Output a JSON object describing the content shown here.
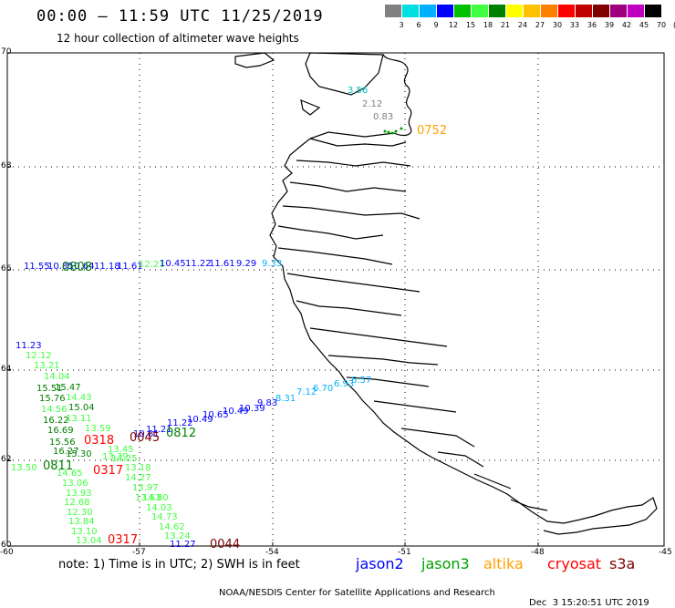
{
  "header": {
    "title": "00:00 — 11:59 UTC 11/25/2019",
    "subtitle": "12 hour collection of altimeter wave heights"
  },
  "colorbar": {
    "colors": [
      "#808080",
      "#00e0e0",
      "#00b0ff",
      "#0000ff",
      "#00c000",
      "#40ff40",
      "#008000",
      "#ffff00",
      "#ffc000",
      "#ff8000",
      "#ff0000",
      "#c00000",
      "#800000",
      "#a00080",
      "#c000c0",
      "#000000"
    ],
    "labels": [
      "3",
      "6",
      "9",
      "12",
      "15",
      "18",
      "21",
      "24",
      "27",
      "30",
      "33",
      "36",
      "39",
      "42",
      "45",
      "70",
      "(ft)"
    ]
  },
  "axes": {
    "lat_labels": [
      "70",
      "68",
      "66",
      "64",
      "62",
      "60"
    ],
    "lon_labels": [
      "-60",
      "-57",
      "-54",
      "-51",
      "-48",
      "-45"
    ]
  },
  "observations": [
    {
      "t": "3.56",
      "c": "#00c0c0"
    },
    {
      "t": "2.12",
      "c": "#808080"
    },
    {
      "t": "0.83",
      "c": "#808080"
    },
    {
      "t": "11.55",
      "c": "#0000ff"
    },
    {
      "t": "10.85",
      "c": "#0000ff"
    },
    {
      "t": "10.64",
      "c": "#0000ff"
    },
    {
      "t": "11.18",
      "c": "#0000ff"
    },
    {
      "t": "11.61",
      "c": "#0000ff"
    },
    {
      "t": "12.21",
      "c": "#40ff40"
    },
    {
      "t": "10.45",
      "c": "#0000ff"
    },
    {
      "t": "11.22",
      "c": "#0000ff"
    },
    {
      "t": "11.61",
      "c": "#0000ff"
    },
    {
      "t": "9.29",
      "c": "#0000ff"
    },
    {
      "t": "9.33",
      "c": "#00b0ff"
    },
    {
      "t": "11.23",
      "c": "#0000ff"
    },
    {
      "t": "12.12",
      "c": "#40ff40"
    },
    {
      "t": "13.21",
      "c": "#40ff40"
    },
    {
      "t": "14.04",
      "c": "#40ff40"
    },
    {
      "t": "15.51",
      "c": "#008000"
    },
    {
      "t": "15.47",
      "c": "#008000"
    },
    {
      "t": "15.76",
      "c": "#008000"
    },
    {
      "t": "14.43",
      "c": "#40ff40"
    },
    {
      "t": "15.04",
      "c": "#008000"
    },
    {
      "t": "14.56",
      "c": "#40ff40"
    },
    {
      "t": "16.22",
      "c": "#008000"
    },
    {
      "t": "13.11",
      "c": "#40ff40"
    },
    {
      "t": "16.69",
      "c": "#008000"
    },
    {
      "t": "13.59",
      "c": "#40ff40"
    },
    {
      "t": "15.56",
      "c": "#008000"
    },
    {
      "t": "16.27",
      "c": "#008000"
    },
    {
      "t": "13.45",
      "c": "#40ff40"
    },
    {
      "t": "15.30",
      "c": "#008000"
    },
    {
      "t": "13.39",
      "c": "#40ff40"
    },
    {
      "t": "13.50",
      "c": "#40ff40"
    },
    {
      "t": "14.65",
      "c": "#40ff40"
    },
    {
      "t": "14.25",
      "c": "#40ff40"
    },
    {
      "t": "13.18",
      "c": "#40ff40"
    },
    {
      "t": "14.27",
      "c": "#40ff40"
    },
    {
      "t": "13.06",
      "c": "#40ff40"
    },
    {
      "t": "13.97",
      "c": "#40ff40"
    },
    {
      "t": "13.93",
      "c": "#40ff40"
    },
    {
      "t": "13.53",
      "c": "#40ff40"
    },
    {
      "t": "12.68",
      "c": "#40ff40"
    },
    {
      "t": "14.80",
      "c": "#40ff40"
    },
    {
      "t": "12.30",
      "c": "#40ff40"
    },
    {
      "t": "14.03",
      "c": "#40ff40"
    },
    {
      "t": "13.84",
      "c": "#40ff40"
    },
    {
      "t": "14.73",
      "c": "#40ff40"
    },
    {
      "t": "13.10",
      "c": "#40ff40"
    },
    {
      "t": "14.62",
      "c": "#40ff40"
    },
    {
      "t": "13.04",
      "c": "#40ff40"
    },
    {
      "t": "13.24",
      "c": "#40ff40"
    },
    {
      "t": "11.27",
      "c": "#0000ff"
    },
    {
      "t": "11.21",
      "c": "#0000ff"
    },
    {
      "t": "10.81",
      "c": "#0000ff"
    },
    {
      "t": "11.22",
      "c": "#0000ff"
    },
    {
      "t": "10.49",
      "c": "#0000ff"
    },
    {
      "t": "10.65",
      "c": "#0000ff"
    },
    {
      "t": "10.49",
      "c": "#0000ff"
    },
    {
      "t": "10.39",
      "c": "#0000ff"
    },
    {
      "t": "9.83",
      "c": "#0000ff"
    },
    {
      "t": "8.31",
      "c": "#00b0ff"
    },
    {
      "t": "7.12",
      "c": "#00b0ff"
    },
    {
      "t": "6.70",
      "c": "#00b0ff"
    },
    {
      "t": "6.93",
      "c": "#00b0ff"
    },
    {
      "t": "6.57",
      "c": "#00b0ff"
    }
  ],
  "times": [
    {
      "t": "0752",
      "c": "#ffa000"
    },
    {
      "t": "0808",
      "c": "#008000"
    },
    {
      "t": "0318",
      "c": "#ff0000"
    },
    {
      "t": "0045",
      "c": "#800000"
    },
    {
      "t": "0812",
      "c": "#008000"
    },
    {
      "t": "0811",
      "c": "#008000"
    },
    {
      "t": "0317",
      "c": "#ff0000"
    },
    {
      "t": "0317",
      "c": "#ff0000"
    },
    {
      "t": "0044",
      "c": "#800000"
    }
  ],
  "footer": {
    "note": "note: 1) Time is in UTC; 2) SWH is in feet",
    "sats": [
      {
        "name": "jason2",
        "color": "#0000ff"
      },
      {
        "name": "jason3",
        "color": "#00a000"
      },
      {
        "name": "altika",
        "color": "#ffa000"
      },
      {
        "name": "cryosat",
        "color": "#ff0000"
      },
      {
        "name": "s3a",
        "color": "#800000"
      }
    ],
    "credit_left": "NOAA/NESDIS Center for Satellite Applications and Research",
    "credit_right": "Dec  3 15:20:51 UTC 2019"
  }
}
